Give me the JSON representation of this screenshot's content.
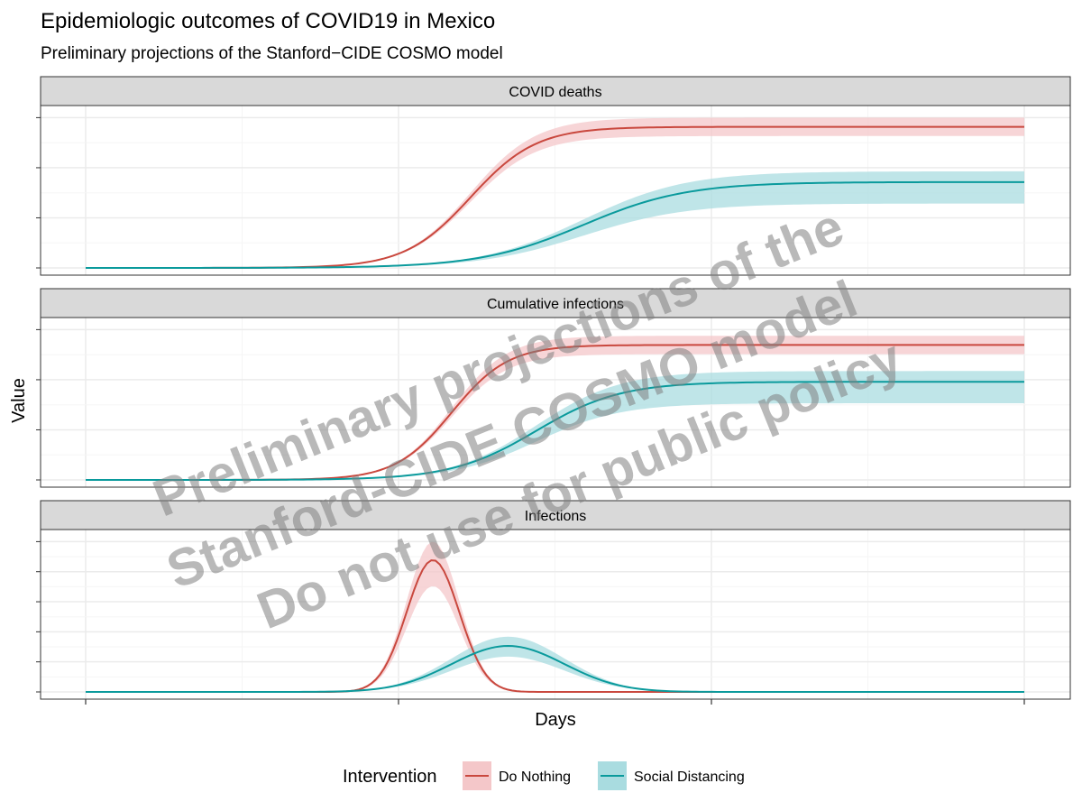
{
  "colors": {
    "do_nothing": "#C9483E",
    "do_nothing_band": "#F4C7C9",
    "social_distancing": "#0A9A9C",
    "social_distancing_band": "#A9DCE0",
    "strip_fill": "#D9D9D9",
    "grid_major": "#EBEBEB",
    "grid_minor": "#F5F5F5"
  },
  "chart_data": {
    "type": "line",
    "title": "Epidemiologic outcomes of COVID19 in Mexico",
    "subtitle": "Preliminary projections of the Stanford−CIDE COSMO model",
    "xlabel": "Days",
    "ylabel": "Value",
    "x_ticks_labeled": false,
    "y_ticks_labeled": false,
    "grid": true,
    "legend": {
      "title": "Intervention",
      "position": "bottom",
      "entries": [
        "Do Nothing",
        "Social Distancing"
      ]
    },
    "watermark": [
      "Preliminary projections of the",
      "Stanford-CIDE COSMO model",
      "Do not use for public policy"
    ],
    "facets": [
      {
        "label": "COVID deaths",
        "series": [
          {
            "name": "Do Nothing",
            "shape": "sigmoid",
            "center": 0.41,
            "width": 0.035,
            "final": 0.92,
            "band_lower": 0.86,
            "band_upper": 0.98
          },
          {
            "name": "Social Distancing",
            "shape": "sigmoid",
            "center": 0.53,
            "width": 0.055,
            "final": 0.56,
            "band_lower": 0.42,
            "band_upper": 0.63
          }
        ]
      },
      {
        "label": "Cumulative infections",
        "series": [
          {
            "name": "Do Nothing",
            "shape": "sigmoid",
            "center": 0.39,
            "width": 0.03,
            "final": 0.88,
            "band_lower": 0.82,
            "band_upper": 0.94
          },
          {
            "name": "Social Distancing",
            "shape": "sigmoid",
            "center": 0.48,
            "width": 0.045,
            "final": 0.64,
            "band_lower": 0.5,
            "band_upper": 0.71
          }
        ]
      },
      {
        "label": "Infections",
        "series": [
          {
            "name": "Do Nothing",
            "shape": "peak",
            "center": 0.37,
            "width": 0.028,
            "peak": 0.86,
            "band_lower": 0.69,
            "band_upper": 0.98
          },
          {
            "name": "Social Distancing",
            "shape": "peak",
            "center": 0.45,
            "width": 0.06,
            "peak": 0.3,
            "band_lower": 0.23,
            "band_upper": 0.36
          }
        ]
      }
    ]
  }
}
